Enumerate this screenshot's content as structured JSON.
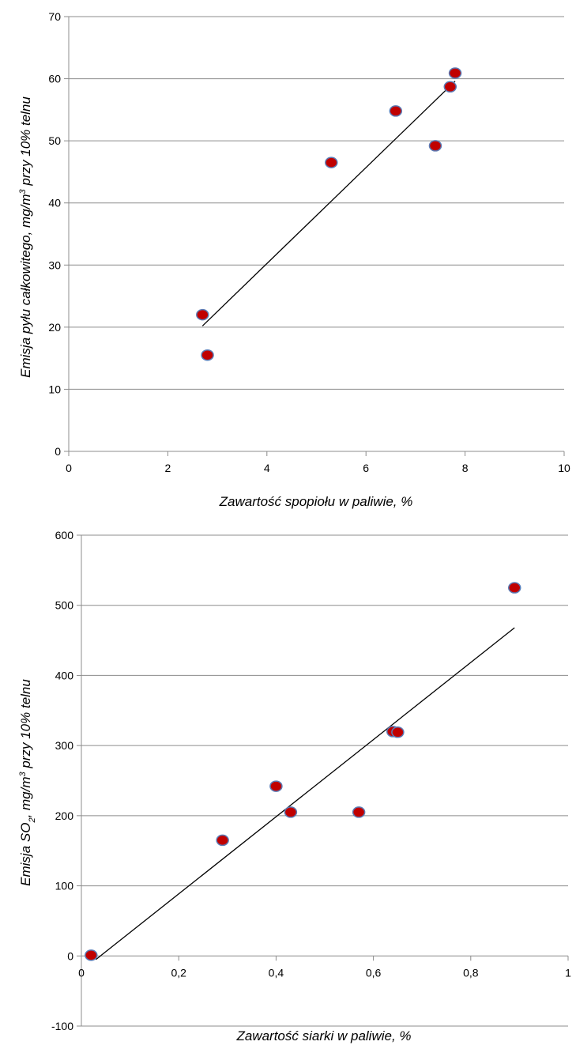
{
  "chart_data": [
    {
      "type": "scatter",
      "title": "",
      "xlabel": "Zawartość  spopiołu w paliwie, %",
      "ylabel_parts": {
        "before": "Emisja pyłu całkowitego, mg/m",
        "superscript": "3",
        "after": " przy 10% telnu"
      },
      "xlim": [
        0,
        10
      ],
      "ylim": [
        0,
        70
      ],
      "xticks": [
        "0",
        "2",
        "4",
        "6",
        "8",
        "10"
      ],
      "yticks": [
        "0",
        "10",
        "20",
        "30",
        "40",
        "50",
        "60",
        "70"
      ],
      "grid": "horizontal",
      "legend": "none",
      "points": [
        {
          "x": 2.7,
          "y": 22.0
        },
        {
          "x": 2.8,
          "y": 15.5
        },
        {
          "x": 5.3,
          "y": 46.5
        },
        {
          "x": 6.6,
          "y": 54.8
        },
        {
          "x": 7.4,
          "y": 49.2
        },
        {
          "x": 7.7,
          "y": 58.7
        },
        {
          "x": 7.8,
          "y": 60.9
        }
      ],
      "trendline": {
        "x1": 2.7,
        "y1": 20.2,
        "x2": 7.8,
        "y2": 59.6
      },
      "marker_color": "#c00000",
      "marker_edge": "#5b7bb5"
    },
    {
      "type": "scatter",
      "title": "",
      "xlabel": "Zawartość  siarki w paliwie, %",
      "ylabel_parts": {
        "before": "Emisja SO",
        "subscript": "2",
        "mid": ", mg/m",
        "superscript": "3",
        "after": " przy 10% telnu"
      },
      "xlim": [
        0,
        1
      ],
      "ylim": [
        -100,
        600
      ],
      "xticks": [
        "0",
        "0,2",
        "0,4",
        "0,6",
        "0,8",
        "1"
      ],
      "yticks": [
        "-100",
        "0",
        "100",
        "200",
        "300",
        "400",
        "500",
        "600"
      ],
      "grid": "horizontal",
      "legend": "none",
      "points": [
        {
          "x": 0.02,
          "y": 1
        },
        {
          "x": 0.29,
          "y": 165
        },
        {
          "x": 0.4,
          "y": 242
        },
        {
          "x": 0.43,
          "y": 205
        },
        {
          "x": 0.57,
          "y": 205
        },
        {
          "x": 0.64,
          "y": 320
        },
        {
          "x": 0.65,
          "y": 319
        },
        {
          "x": 0.89,
          "y": 525
        }
      ],
      "trendline": {
        "x1": 0.03,
        "y1": -5,
        "x2": 0.89,
        "y2": 468
      },
      "marker_color": "#c00000",
      "marker_edge": "#5b7bb5"
    }
  ]
}
